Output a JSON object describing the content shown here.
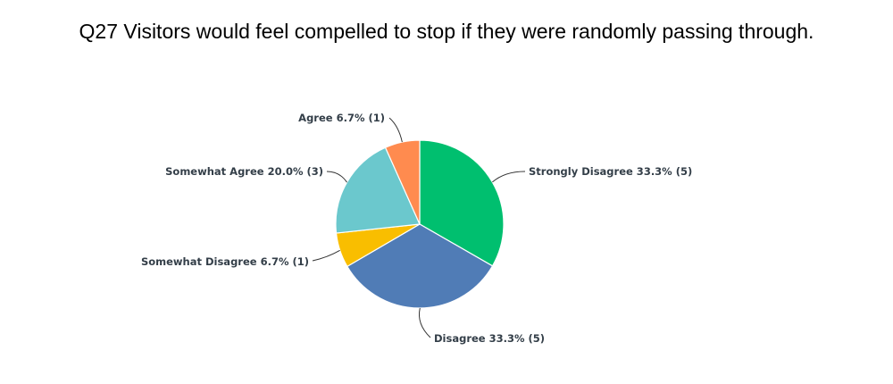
{
  "chart_data": {
    "type": "pie",
    "title": "Q27 Visitors would feel compelled to stop if they were randomly passing through.",
    "slices": [
      {
        "label": "Strongly Disagree 33.3% (5)",
        "category": "Strongly Disagree",
        "percent": 33.3,
        "count": 5,
        "color": "#00bf6f"
      },
      {
        "label": "Disagree 33.3% (5)",
        "category": "Disagree",
        "percent": 33.3,
        "count": 5,
        "color": "#507cb6"
      },
      {
        "label": "Somewhat Disagree 6.7% (1)",
        "category": "Somewhat Disagree",
        "percent": 6.7,
        "count": 1,
        "color": "#f9be00"
      },
      {
        "label": "Somewhat Agree 20.0% (3)",
        "category": "Somewhat Agree",
        "percent": 20.0,
        "count": 3,
        "color": "#6bc8cd"
      },
      {
        "label": "Agree 6.7% (1)",
        "category": "Agree",
        "percent": 6.7,
        "count": 1,
        "color": "#ff8b4f"
      }
    ]
  }
}
